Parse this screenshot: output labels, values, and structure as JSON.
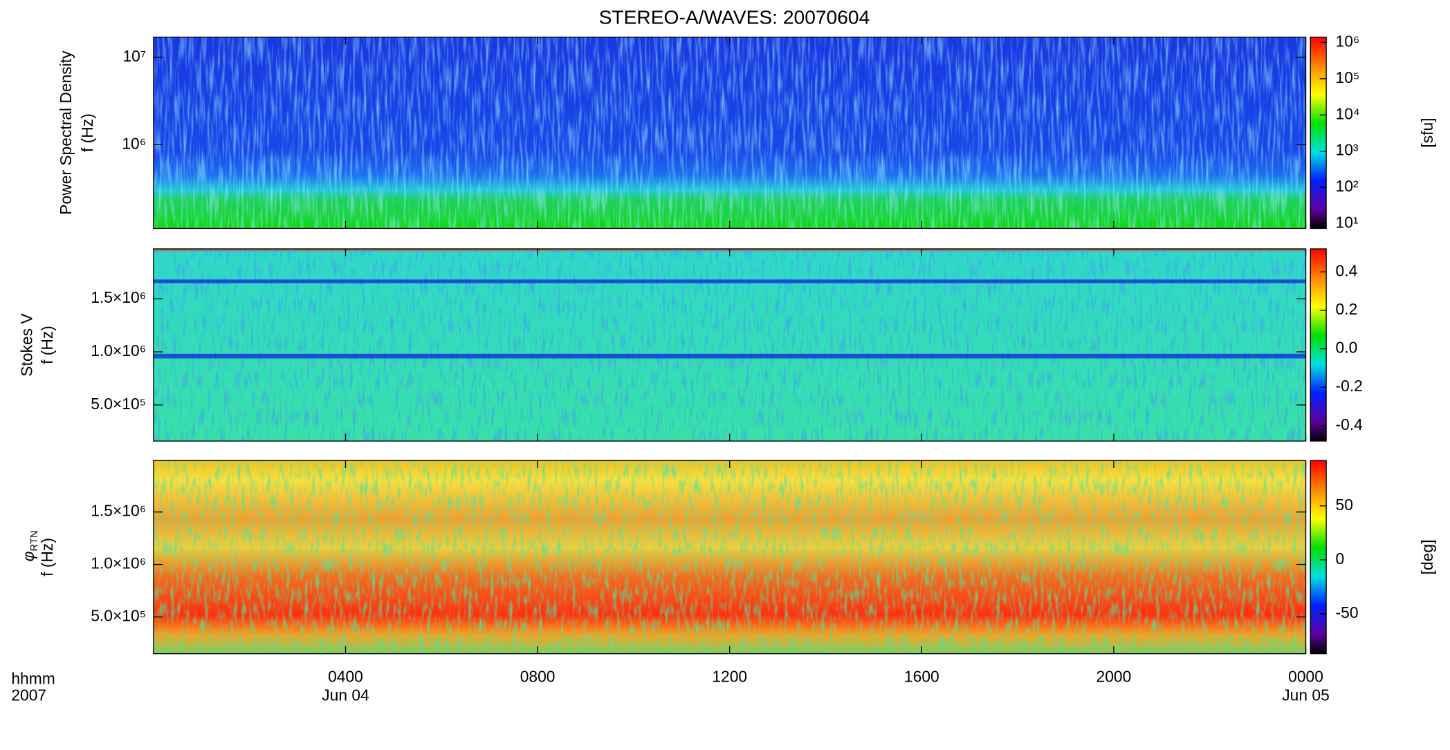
{
  "title": "STEREO-A/WAVES: 20070604",
  "x_label": [
    "hhmm",
    "2007"
  ],
  "chart_data": [
    {
      "type": "heatmap",
      "ylabel": [
        "Power Spectral Density",
        "f (Hz)"
      ],
      "log_y": true,
      "ylim": [
        110000,
        17000000
      ],
      "yticks": [
        {
          "value": 1000000,
          "label": "10⁶"
        },
        {
          "value": 10000000,
          "label": "10⁷"
        }
      ],
      "xlim": [
        0,
        24
      ],
      "xticks": [
        4,
        8,
        12,
        16,
        20,
        24
      ],
      "colorbar": {
        "label": "[sfu]",
        "log": true,
        "lim": [
          7.4,
          1400000
        ],
        "ticks": [
          {
            "value": 10,
            "label": "10¹"
          },
          {
            "value": 100,
            "label": "10²"
          },
          {
            "value": 1000,
            "label": "10³"
          },
          {
            "value": 10000,
            "label": "10⁴"
          },
          {
            "value": 100000,
            "label": "10⁵"
          },
          {
            "value": 1000000,
            "label": "10⁶"
          }
        ]
      }
    },
    {
      "type": "heatmap",
      "ylabel": [
        "Stokes V",
        "f (Hz)"
      ],
      "log_y": false,
      "ylim": [
        160000,
        1970000
      ],
      "yticks": [
        {
          "value": 500000,
          "label": "5.0×10⁵"
        },
        {
          "value": 1000000,
          "label": "1.0×10⁶"
        },
        {
          "value": 1500000,
          "label": "1.5×10⁶"
        }
      ],
      "xlim": [
        0,
        24
      ],
      "xticks": [
        4,
        8,
        12,
        16,
        20,
        24
      ],
      "colorbar": {
        "log": false,
        "lim": [
          -0.48,
          0.52
        ],
        "ticks": [
          -0.4,
          -0.2,
          {
            "value": 0,
            "label": "0.0"
          },
          0.2,
          0.4
        ]
      }
    },
    {
      "type": "heatmap",
      "ylabel_symbol": "φ",
      "ylabel_subscript": "RTN",
      "ylabel": [
        "f (Hz)"
      ],
      "log_y": false,
      "ylim": [
        150000,
        1990000
      ],
      "yticks": [
        {
          "value": 500000,
          "label": "5.0×10⁵"
        },
        {
          "value": 1000000,
          "label": "1.0×10⁶"
        },
        {
          "value": 1500000,
          "label": "1.5×10⁶"
        }
      ],
      "xlim": [
        0,
        24
      ],
      "xticks": [
        {
          "value": 4,
          "label": "0400"
        },
        {
          "value": 8,
          "label": "0800"
        },
        {
          "value": 12,
          "label": "1200"
        },
        {
          "value": 16,
          "label": "1600"
        },
        {
          "value": 20,
          "label": "2000"
        },
        {
          "value": 24,
          "label": "0000"
        }
      ],
      "date_labels": [
        {
          "value": 4,
          "label": "Jun 04"
        },
        {
          "value": 24,
          "label": "Jun 05"
        }
      ],
      "colorbar": {
        "label": "[deg]",
        "log": false,
        "lim": [
          -87,
          92
        ],
        "ticks": [
          -50,
          0,
          50
        ]
      }
    }
  ]
}
